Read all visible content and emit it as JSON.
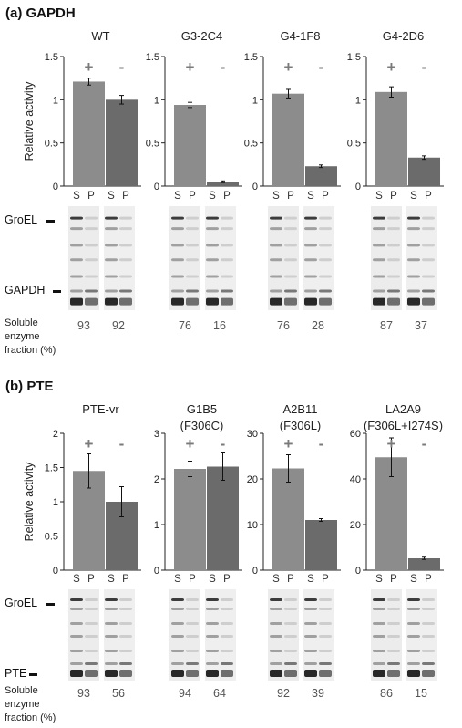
{
  "figure": {
    "sections": [
      {
        "title": "(a) GAPDH",
        "ylabel": "Relative activity",
        "protein_label": "GAPDH",
        "groel_label": "GroEL",
        "soluble_label": [
          "Soluble",
          "enzyme",
          "fraction (%)"
        ],
        "lane_labels": [
          "S",
          "P",
          "S",
          "P"
        ],
        "sign_labels": [
          "+",
          "-"
        ]
      },
      {
        "title": "(b) PTE",
        "ylabel": "Relative activity",
        "protein_label": "PTE",
        "groel_label": "GroEL",
        "soluble_label": [
          "Soluble",
          "enzyme",
          "fraction (%)"
        ],
        "lane_labels": [
          "S",
          "P",
          "S",
          "P"
        ],
        "sign_labels": [
          "+",
          "-"
        ]
      }
    ]
  },
  "chart_data": [
    {
      "type": "bar",
      "section": "(a) GAPDH",
      "title": "WT",
      "categories": [
        "+",
        "-"
      ],
      "values": [
        1.21,
        1.0
      ],
      "errors": [
        0.04,
        0.05
      ],
      "ylim": [
        0,
        1.5
      ],
      "yticks": [
        "0",
        "0.5",
        "1",
        "1.5"
      ],
      "ylabel": "Relative activity",
      "soluble_fraction": [
        "93",
        "92"
      ],
      "colors": [
        "#8c8c8c",
        "#6b6b6b"
      ]
    },
    {
      "type": "bar",
      "section": "(a) GAPDH",
      "title": "G3-2C4",
      "categories": [
        "+",
        "-"
      ],
      "values": [
        0.94,
        0.05
      ],
      "errors": [
        0.03,
        0.01
      ],
      "ylim": [
        0,
        1.5
      ],
      "yticks": [
        "0",
        "0.5",
        "1",
        "1.5"
      ],
      "soluble_fraction": [
        "76",
        "16"
      ],
      "colors": [
        "#8c8c8c",
        "#6b6b6b"
      ]
    },
    {
      "type": "bar",
      "section": "(a) GAPDH",
      "title": "G4-1F8",
      "categories": [
        "+",
        "-"
      ],
      "values": [
        1.07,
        0.23
      ],
      "errors": [
        0.05,
        0.015
      ],
      "ylim": [
        0,
        1.5
      ],
      "yticks": [
        "0",
        "0.5",
        "1",
        "1.5"
      ],
      "soluble_fraction": [
        "76",
        "28"
      ],
      "colors": [
        "#8c8c8c",
        "#6b6b6b"
      ]
    },
    {
      "type": "bar",
      "section": "(a) GAPDH",
      "title": "G4-2D6",
      "categories": [
        "+",
        "-"
      ],
      "values": [
        1.09,
        0.33
      ],
      "errors": [
        0.06,
        0.02
      ],
      "ylim": [
        0,
        1.5
      ],
      "yticks": [
        "0",
        "0.5",
        "1",
        "1.5"
      ],
      "soluble_fraction": [
        "87",
        "37"
      ],
      "colors": [
        "#8c8c8c",
        "#6b6b6b"
      ]
    },
    {
      "type": "bar",
      "section": "(b) PTE",
      "title": [
        "PTE-vr"
      ],
      "categories": [
        "+",
        "-"
      ],
      "values": [
        1.45,
        1.0
      ],
      "errors": [
        0.25,
        0.22
      ],
      "ylim": [
        0,
        2
      ],
      "yticks": [
        "0",
        "0.5",
        "1",
        "1.5",
        "2"
      ],
      "ylabel": "Relative activity",
      "soluble_fraction": [
        "93",
        "56"
      ],
      "colors": [
        "#8c8c8c",
        "#6b6b6b"
      ]
    },
    {
      "type": "bar",
      "section": "(b) PTE",
      "title": [
        "G1B5",
        "(F306C)"
      ],
      "categories": [
        "+",
        "-"
      ],
      "values": [
        2.22,
        2.27
      ],
      "errors": [
        0.17,
        0.3
      ],
      "ylim": [
        0,
        3
      ],
      "yticks": [
        "0",
        "1",
        "2",
        "3"
      ],
      "soluble_fraction": [
        "94",
        "64"
      ],
      "colors": [
        "#8c8c8c",
        "#6b6b6b"
      ]
    },
    {
      "type": "bar",
      "section": "(b) PTE",
      "title": [
        "A2B11",
        "(F306L)"
      ],
      "categories": [
        "+",
        "-"
      ],
      "values": [
        22.3,
        11.0
      ],
      "errors": [
        3.0,
        0.3
      ],
      "ylim": [
        0,
        30
      ],
      "yticks": [
        "0",
        "10",
        "20",
        "30"
      ],
      "soluble_fraction": [
        "92",
        "39"
      ],
      "colors": [
        "#8c8c8c",
        "#6b6b6b"
      ]
    },
    {
      "type": "bar",
      "section": "(b) PTE",
      "title": [
        "LA2A9",
        "(F306L+I274S)"
      ],
      "categories": [
        "+",
        "-"
      ],
      "values": [
        49.5,
        5.2
      ],
      "errors": [
        8.5,
        0.5
      ],
      "ylim": [
        0,
        60
      ],
      "yticks": [
        "0",
        "20",
        "40",
        "60"
      ],
      "soluble_fraction": [
        "86",
        "15"
      ],
      "colors": [
        "#8c8c8c",
        "#6b6b6b"
      ]
    }
  ]
}
